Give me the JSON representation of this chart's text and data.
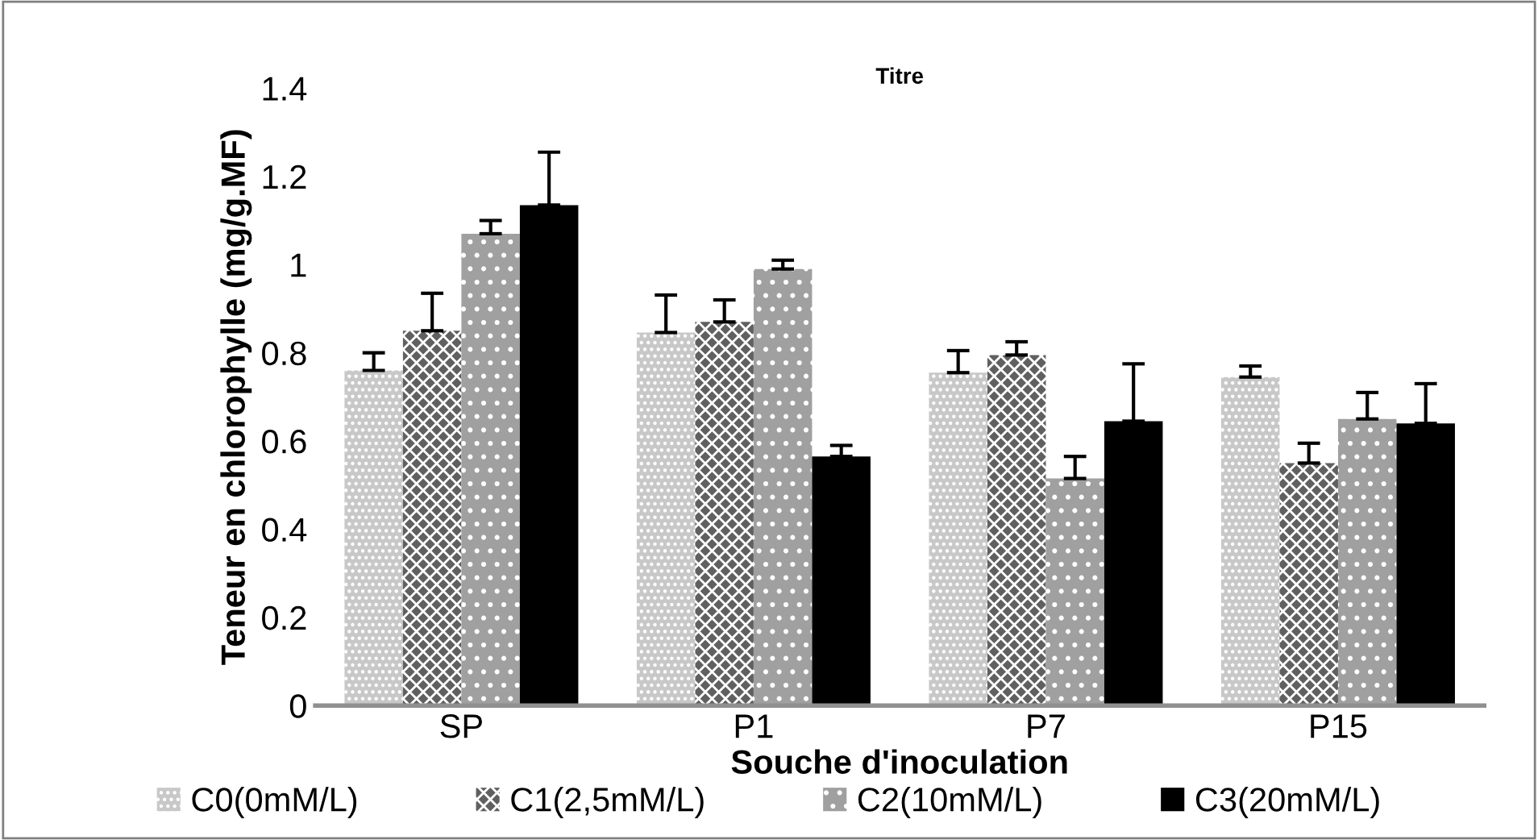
{
  "chart_data": {
    "type": "bar",
    "title": "Titre",
    "xlabel": "Souche d'inoculation",
    "ylabel": "Teneur en chlorophylle (mg/g.MF)",
    "categories": [
      "SP",
      "P1",
      "P7",
      "P15"
    ],
    "series": [
      {
        "name": "C0(0mM/L)",
        "color": "#c8c8c8",
        "values": [
          0.76,
          0.846,
          0.755,
          0.745
        ],
        "errors": [
          0.04,
          0.085,
          0.05,
          0.025
        ]
      },
      {
        "name": "C1(2,5mM/L)",
        "color": "#606060",
        "values": [
          0.85,
          0.87,
          0.795,
          0.55
        ],
        "errors": [
          0.085,
          0.05,
          0.03,
          0.045
        ]
      },
      {
        "name": "C2(10mM/L)",
        "color": "#a0a0a0",
        "values": [
          1.07,
          0.99,
          0.515,
          0.65
        ],
        "errors": [
          0.03,
          0.02,
          0.05,
          0.06
        ]
      },
      {
        "name": "C3(20mM/L)",
        "color": "#000000",
        "values": [
          1.135,
          0.565,
          0.645,
          0.64
        ],
        "errors": [
          0.12,
          0.025,
          0.13,
          0.09
        ]
      }
    ],
    "ylim": [
      0,
      1.4
    ],
    "yticks": [
      0,
      0.2,
      0.4,
      0.6,
      0.8,
      1,
      1.2,
      1.4
    ],
    "grid": false,
    "legend": "bottom"
  }
}
